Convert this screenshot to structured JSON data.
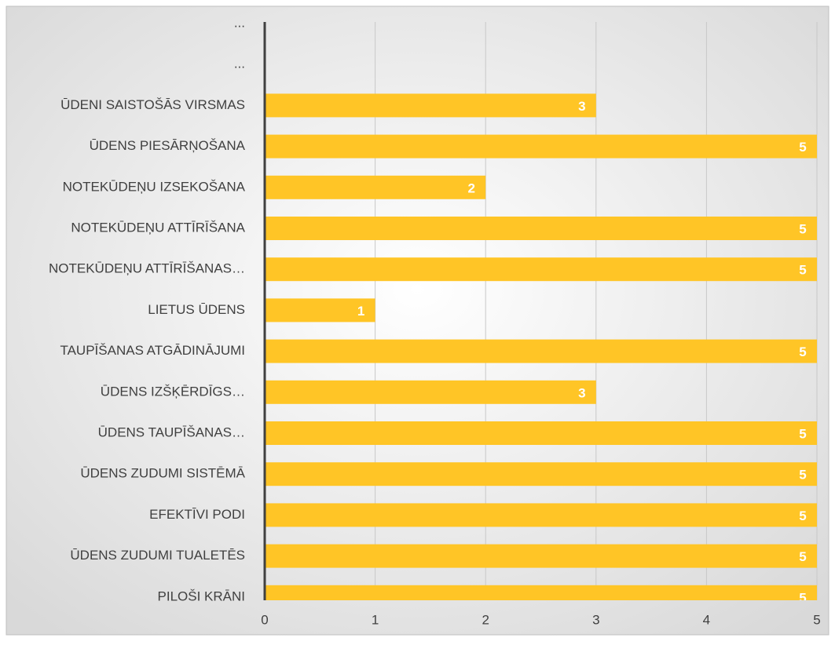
{
  "chart_data": {
    "type": "bar",
    "orientation": "horizontal",
    "categories": [
      "...",
      "...",
      "ŪDENI SAISTOŠĀS VIRSMAS",
      "ŪDENS PIESĀRŅOŠANA",
      "NOTEKŪDEŅU IZSEKOŠANA",
      "NOTEKŪDEŅU ATTĪRĪŠANA",
      "NOTEKŪDEŅU ATTĪRĪŠANAS…",
      "LIETUS ŪDENS",
      "TAUPĪŠANAS ATGĀDINĀJUMI",
      "ŪDENS IZŠĶĒRDĪGS…",
      "ŪDENS TAUPĪŠANAS…",
      "ŪDENS ZUDUMI SISTĒMĀ",
      "EFEKTĪVI PODI",
      "ŪDENS ZUDUMI TUALETĒS",
      "PILOŠI KRĀNI"
    ],
    "values": [
      null,
      null,
      3,
      5,
      2,
      5,
      5,
      1,
      5,
      3,
      5,
      5,
      5,
      5,
      5
    ],
    "color": "#ffc526",
    "xlim": [
      0,
      5
    ],
    "xticks": [
      0,
      1,
      2,
      3,
      4,
      5
    ],
    "grid": true,
    "data_labels": true
  }
}
